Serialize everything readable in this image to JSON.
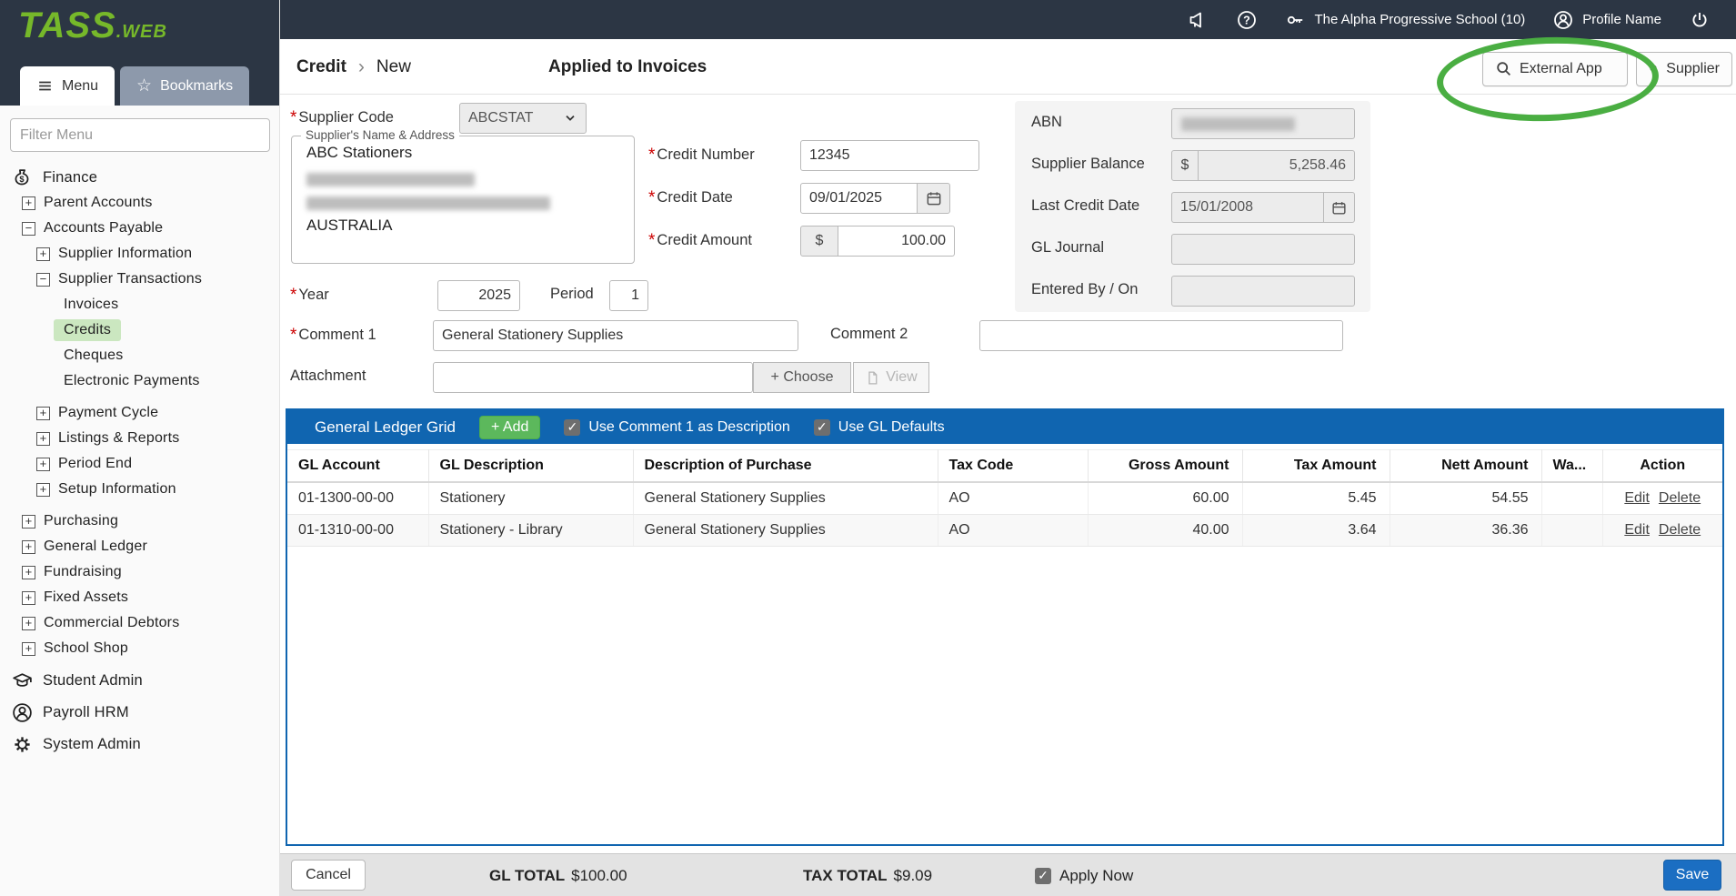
{
  "colors": {
    "topbar_bg": "#2c3644",
    "logo_green": "#76b82a",
    "grid_bar_bg": "#1065b0",
    "add_btn_bg": "#5cb85c",
    "save_btn_bg": "#1b6ec2",
    "active_item_bg": "#cbe7c0",
    "annotation_green": "#4aae42",
    "required_red": "#cc0000",
    "footer_bg": "#e3e3e3"
  },
  "icons": {
    "check": "✓",
    "star": "☆",
    "plus": "+",
    "minus": "−"
  },
  "logo": {
    "primary": "TASS",
    "suffix": ".WEB"
  },
  "topbar": {
    "school_name": "The Alpha Progressive School (10)",
    "profile_name": "Profile Name"
  },
  "sidebar": {
    "filter_placeholder": "Filter Menu",
    "tabs": {
      "menu": "Menu",
      "bookmarks": "Bookmarks"
    },
    "tree": [
      {
        "label": "Finance",
        "level": 0,
        "icon": "money-bag"
      },
      {
        "label": "Parent Accounts",
        "level": 1,
        "expander": "+"
      },
      {
        "label": "Accounts Payable",
        "level": 1,
        "expander": "−"
      },
      {
        "label": "Supplier Information",
        "level": 2,
        "expander": "+"
      },
      {
        "label": "Supplier Transactions",
        "level": 2,
        "expander": "−"
      },
      {
        "label": "Invoices",
        "level": 3
      },
      {
        "label": "Credits",
        "level": 3,
        "active": true
      },
      {
        "label": "Cheques",
        "level": 3
      },
      {
        "label": "Electronic Payments",
        "level": 3
      },
      {
        "label": "Payment Cycle",
        "level": 2,
        "expander": "+",
        "gap": true
      },
      {
        "label": "Listings & Reports",
        "level": 2,
        "expander": "+"
      },
      {
        "label": "Period End",
        "level": 2,
        "expander": "+"
      },
      {
        "label": "Setup Information",
        "level": 2,
        "expander": "+"
      },
      {
        "label": "Purchasing",
        "level": 1,
        "expander": "+",
        "gap": true
      },
      {
        "label": "General Ledger",
        "level": 1,
        "expander": "+"
      },
      {
        "label": "Fundraising",
        "level": 1,
        "expander": "+"
      },
      {
        "label": "Fixed Assets",
        "level": 1,
        "expander": "+"
      },
      {
        "label": "Commercial Debtors",
        "level": 1,
        "expander": "+"
      },
      {
        "label": "School Shop",
        "level": 1,
        "expander": "+"
      },
      {
        "label": "Student Admin",
        "level": 0,
        "icon": "grad-cap",
        "gap": true
      },
      {
        "label": "Payroll HRM",
        "level": 0,
        "icon": "person-circle",
        "gap": true
      },
      {
        "label": "System Admin",
        "level": 0,
        "icon": "gear",
        "gap": true
      }
    ]
  },
  "header": {
    "breadcrumb_root": "Credit",
    "breadcrumb_separator": "›",
    "breadcrumb_current": "New",
    "title": "Applied to Invoices",
    "external_app": "External App",
    "supplier": "Supplier"
  },
  "form": {
    "supplier_code": {
      "label": "Supplier Code",
      "value": "ABCSTAT"
    },
    "supplier_address": {
      "legend": "Supplier's Name & Address",
      "name": "ABC Stationers",
      "country": "AUSTRALIA"
    },
    "credit_number": {
      "label": "Credit Number",
      "value": "12345"
    },
    "credit_date": {
      "label": "Credit Date",
      "value": "09/01/2025"
    },
    "credit_amount": {
      "label": "Credit Amount",
      "currency": "$",
      "value": "100.00"
    },
    "abn": {
      "label": "ABN"
    },
    "supplier_balance": {
      "label": "Supplier Balance",
      "currency": "$",
      "value": "5,258.46"
    },
    "last_credit_date": {
      "label": "Last Credit Date",
      "value": "15/01/2008"
    },
    "gl_journal": {
      "label": "GL Journal",
      "value": ""
    },
    "entered_by": {
      "label": "Entered By / On",
      "value": ""
    },
    "year": {
      "label": "Year",
      "value": "2025"
    },
    "period": {
      "label": "Period",
      "value": "1"
    },
    "comment1": {
      "label": "Comment 1",
      "value": "General Stationery Supplies"
    },
    "comment2": {
      "label": "Comment 2",
      "value": ""
    },
    "attachment": {
      "label": "Attachment",
      "value": "",
      "choose": "+ Choose",
      "view": "View"
    }
  },
  "grid": {
    "title": "General Ledger Grid",
    "add_button": "+ Add",
    "option1": {
      "label": "Use Comment 1 as Description",
      "checked": true
    },
    "option2": {
      "label": "Use GL Defaults",
      "checked": true
    },
    "columns": [
      "GL Account",
      "GL Description",
      "Description of Purchase",
      "Tax Code",
      "Gross Amount",
      "Tax Amount",
      "Nett Amount",
      "Wa...",
      "Action"
    ],
    "action_edit": "Edit",
    "action_delete": "Delete",
    "rows": [
      {
        "gl_account": "01-1300-00-00",
        "gl_description": "Stationery",
        "purchase_description": "General Stationery Supplies",
        "tax_code": "AO",
        "gross": "60.00",
        "tax": "5.45",
        "nett": "54.55",
        "warning": ""
      },
      {
        "gl_account": "01-1310-00-00",
        "gl_description": "Stationery - Library",
        "purchase_description": "General Stationery Supplies",
        "tax_code": "AO",
        "gross": "40.00",
        "tax": "3.64",
        "nett": "36.36",
        "warning": ""
      }
    ]
  },
  "footer": {
    "cancel": "Cancel",
    "gl_total_label": "GL TOTAL",
    "gl_total_value": "$100.00",
    "tax_total_label": "TAX TOTAL",
    "tax_total_value": "$9.09",
    "apply_now": "Apply Now",
    "save": "Save"
  }
}
